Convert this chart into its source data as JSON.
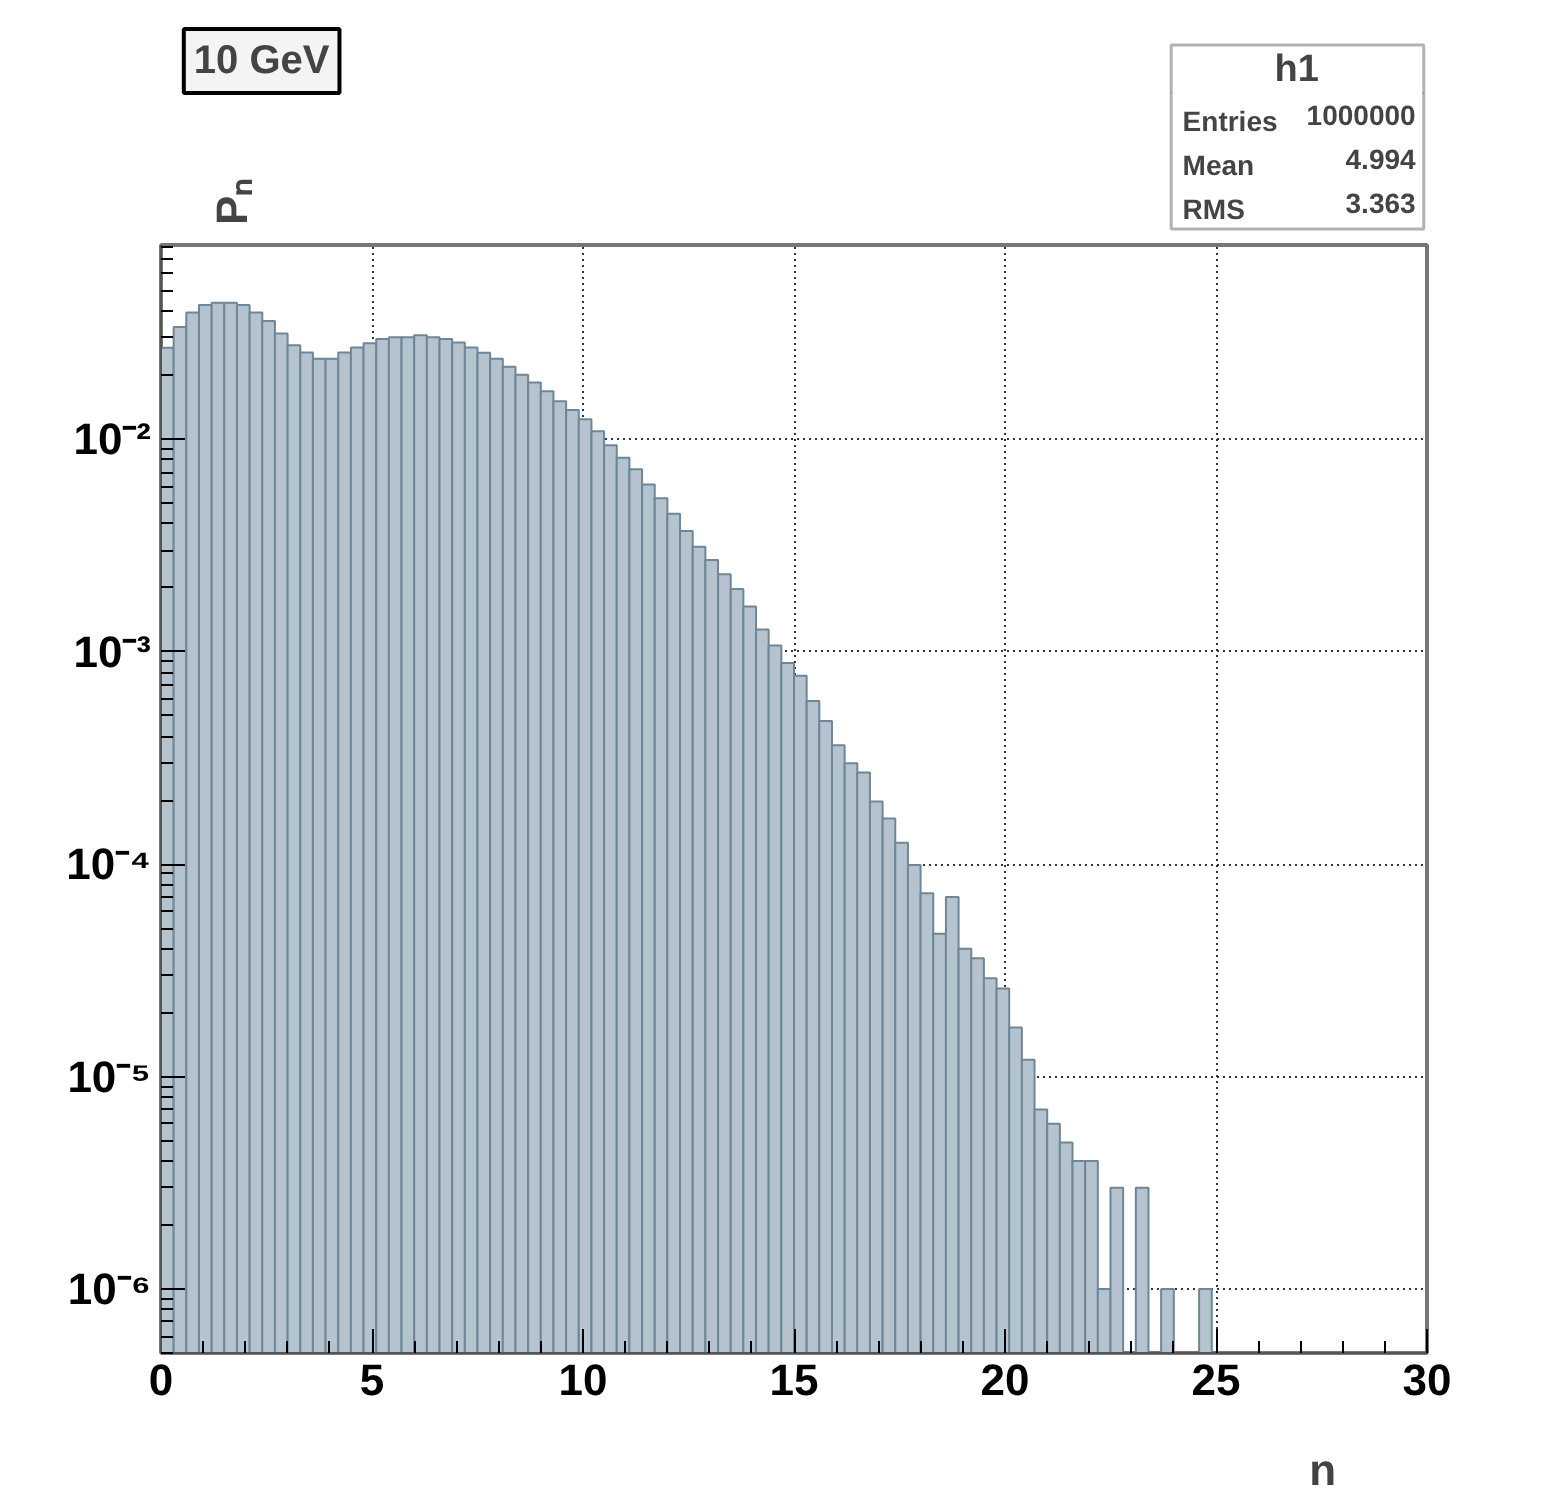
{
  "chart_data": {
    "type": "histogram",
    "title": "10 GeV",
    "xlabel": "n",
    "ylabel": "Pₙ",
    "annotations": [
      "h1",
      "Entries",
      "1000000",
      "Mean",
      "4.994",
      "RMS",
      "3.363"
    ],
    "bins": [
      0,
      0.3,
      0.6,
      0.9,
      1.2,
      1.5,
      1.8,
      2.1,
      2.4,
      2.7,
      3,
      3.3,
      3.6,
      3.9,
      4.2,
      4.5,
      4.8,
      5.1,
      5.4,
      5.7,
      6,
      6.3,
      6.6,
      6.9,
      7.2,
      7.5,
      7.8,
      8.1,
      8.4,
      8.7,
      9,
      9.3,
      9.6,
      9.9,
      10.2,
      10.5,
      10.8,
      11.1,
      11.4,
      11.7,
      12,
      12.3,
      12.6,
      12.9,
      13.2,
      13.5,
      13.8,
      14.1,
      14.4,
      14.7,
      15,
      15.3,
      15.6,
      15.9,
      16.2,
      16.5,
      16.8,
      17.1,
      17.4,
      17.7,
      18,
      18.3,
      18.6,
      18.9,
      19.2,
      19.5,
      19.8,
      20.1,
      20.4,
      20.7,
      21,
      21.3,
      21.6,
      21.9,
      22.2,
      22.5,
      22.8,
      23.1,
      23.4,
      23.7,
      24,
      24.3,
      24.6,
      24.9,
      25.2,
      25.5,
      25.8,
      26.1,
      26.4,
      26.7,
      27,
      27.3,
      27.6,
      27.9,
      28.2,
      28.5,
      28.8,
      29.1,
      29.4,
      29.7,
      30
    ],
    "values": [
      0.0269,
      0.0337,
      0.0395,
      0.0428,
      0.0439,
      0.0439,
      0.0428,
      0.0395,
      0.036,
      0.0314,
      0.0277,
      0.0256,
      0.0239,
      0.0239,
      0.0256,
      0.027,
      0.0283,
      0.0296,
      0.0302,
      0.0302,
      0.0308,
      0.0302,
      0.0296,
      0.0285,
      0.027,
      0.0255,
      0.0239,
      0.0219,
      0.0201,
      0.0185,
      0.0168,
      0.0151,
      0.0137,
      0.0124,
      0.0109,
      0.00937,
      0.00817,
      0.00721,
      0.00612,
      0.00527,
      0.00445,
      0.0037,
      0.00312,
      0.0027,
      0.00231,
      0.00197,
      0.00163,
      0.00127,
      0.00107,
      0.000883,
      0.000769,
      0.000585,
      0.000471,
      0.000363,
      0.000298,
      0.00027,
      0.000197,
      0.000164,
      0.000126,
      9.9e-05,
      7.3e-05,
      4.7e-05,
      7e-05,
      4e-05,
      3.6e-05,
      2.9e-05,
      2.6e-05,
      1.7e-05,
      1.2e-05,
      7e-06,
      6e-06,
      4.9e-06,
      4e-06,
      4e-06,
      1e-06,
      3e-06,
      null,
      3e-06,
      null,
      1e-06,
      null,
      null,
      1e-06,
      null,
      null,
      null,
      null,
      null,
      null,
      null,
      null,
      null,
      null,
      null,
      null,
      null,
      null,
      null,
      null,
      null
    ],
    "color": "#b4c3ce",
    "log": true,
    "grid": true,
    "xlim": [
      0,
      30
    ],
    "xticks": [
      0,
      5,
      10,
      15,
      20,
      25,
      30
    ],
    "ylim": [
      5e-07,
      0.082
    ],
    "yticks": [
      {
        "value": 1e-06,
        "label": "10⁻⁶"
      },
      {
        "value": 1e-05,
        "label": "10⁻⁵"
      },
      {
        "value": 0.0001,
        "label": "10⁻⁴"
      },
      {
        "value": 0.001,
        "label": "10⁻³"
      },
      {
        "value": 0.01,
        "label": "10⁻²"
      }
    ]
  }
}
